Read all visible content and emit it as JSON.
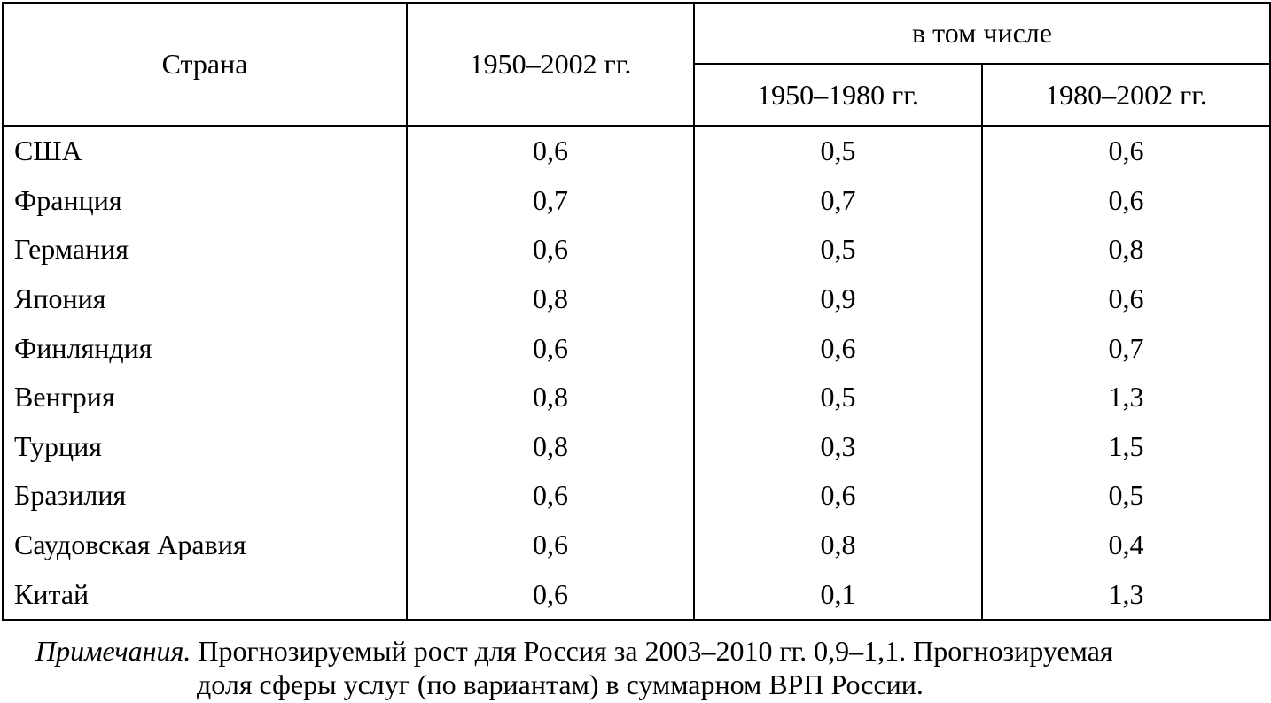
{
  "table": {
    "header": {
      "country": "Страна",
      "period": "1950–2002 гг.",
      "group": "в том числе",
      "subperiods": [
        "1950–1980 гг.",
        "1980–2002 гг."
      ]
    },
    "rows": [
      [
        "США",
        "0,6",
        "0,5",
        "0,6"
      ],
      [
        "Франция",
        "0,7",
        "0,7",
        "0,6"
      ],
      [
        "Германия",
        "0,6",
        "0,5",
        "0,8"
      ],
      [
        "Япония",
        "0,8",
        "0,9",
        "0,6"
      ],
      [
        "Финляндия",
        "0,6",
        "0,6",
        "0,7"
      ],
      [
        "Венгрия",
        "0,8",
        "0,5",
        "1,3"
      ],
      [
        "Турция",
        "0,8",
        "0,3",
        "1,5"
      ],
      [
        "Бразилия",
        "0,6",
        "0,6",
        "0,5"
      ],
      [
        "Саудовская Аравия",
        "0,6",
        "0,8",
        "0,4"
      ],
      [
        "Китай",
        "0,6",
        "0,1",
        "1,3"
      ]
    ]
  },
  "note": {
    "label": "Примечания.",
    "line1": "Прогнозируемый рост для Россия за 2003–2010 гг. 0,9–1,1. Прогнозируемая",
    "line2": "доля сферы услуг (по вариантам) в суммарном ВРП России."
  }
}
